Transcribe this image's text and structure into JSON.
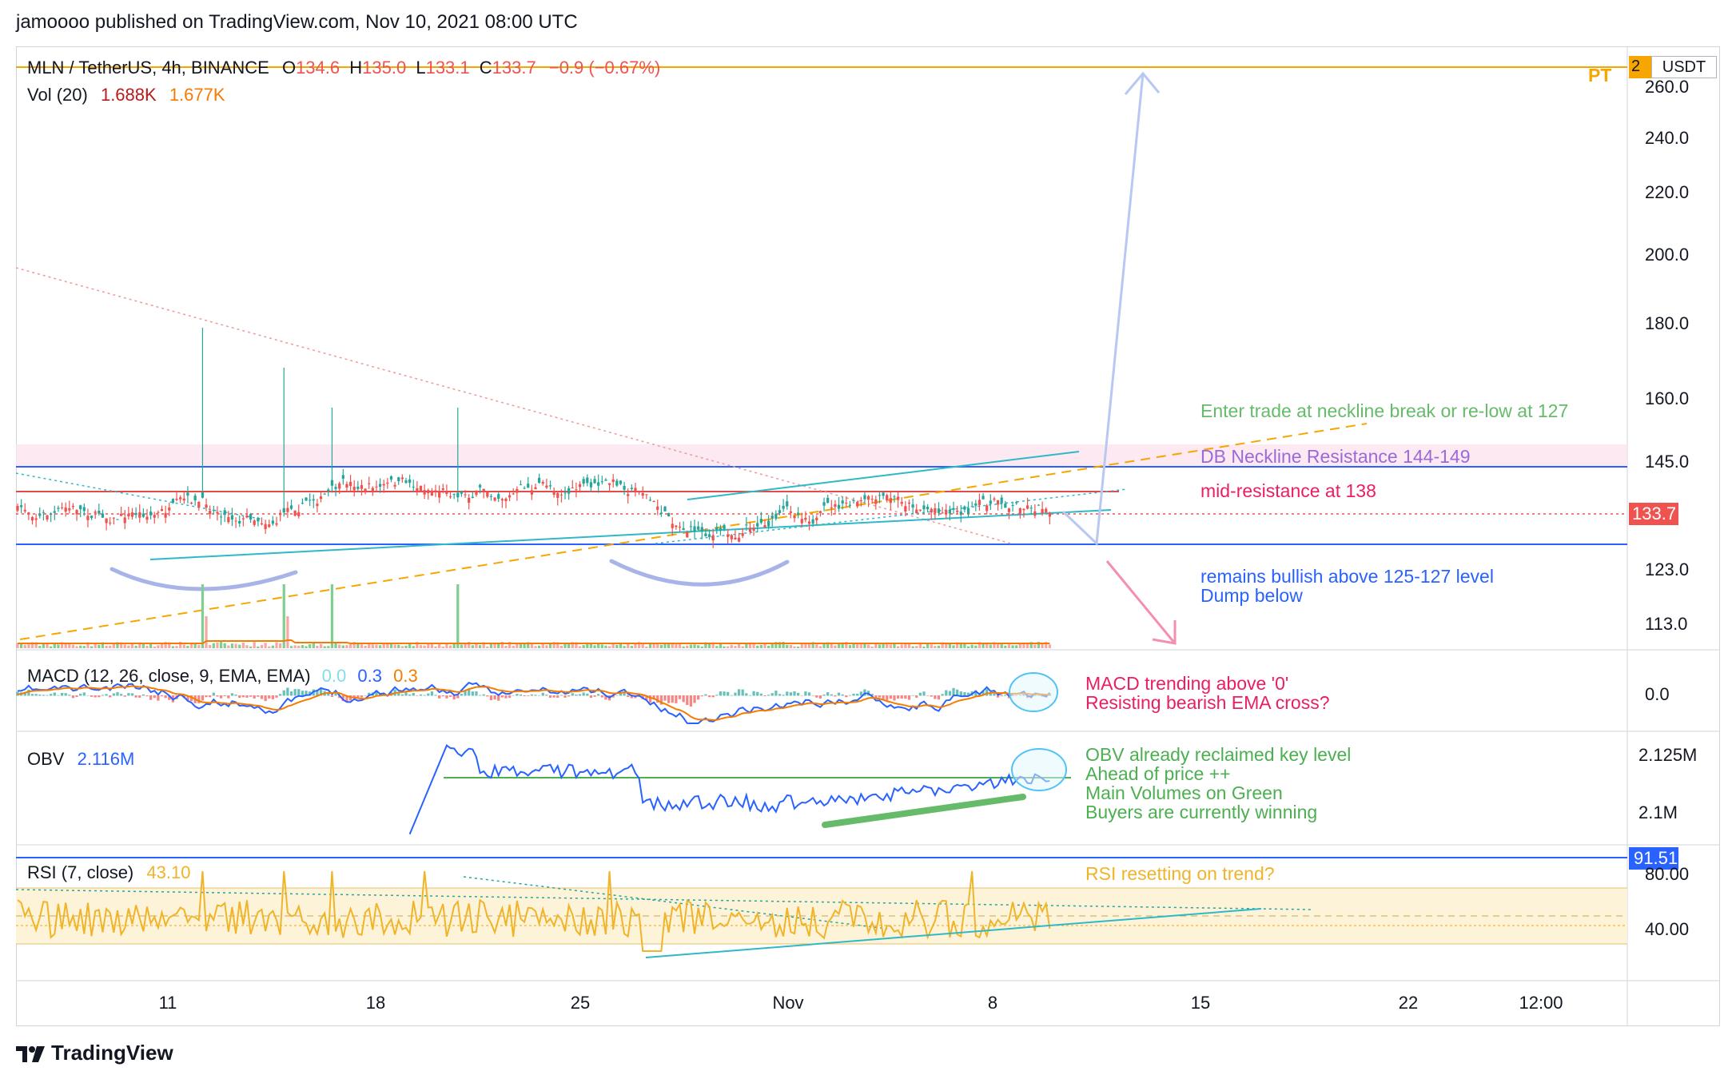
{
  "header": {
    "publish_line": "jamoooo published on TradingView.com, Nov 10, 2021 08:00 UTC"
  },
  "main_legend": {
    "symbol": "MLN / TetherUS, 4h, BINANCE",
    "o_label": "O",
    "o_value": "134.6",
    "h_label": "H",
    "h_value": "135.0",
    "l_label": "L",
    "l_value": "133.1",
    "c_label": "C",
    "c_value": "133.7",
    "change": "−0.9 (−0.67%)",
    "vol_label": "Vol (20)",
    "vol_value_1": "1.688K",
    "vol_value_2": "1.677K"
  },
  "price_axis": {
    "currency": "USDT",
    "ticks": [
      "260.0",
      "240.0",
      "220.0",
      "200.0",
      "180.0",
      "160.0",
      "145.0",
      "123.0",
      "113.0"
    ],
    "current_price": "133.7",
    "top_marker": "2"
  },
  "annotations": {
    "pt": "PT",
    "enter_trade": "Enter trade at neckline break or re-low at 127",
    "neckline": "DB Neckline Resistance 144-149",
    "mid_resistance": "mid-resistance at 138",
    "bullish_1": "remains bullish above 125-127 level",
    "bullish_2": "Dump below",
    "macd_1": "MACD trending above '0'",
    "macd_2": "Resisting bearish EMA cross?",
    "obv_1": "OBV already reclaimed key level",
    "obv_2": "Ahead of price ++",
    "obv_3": "Main Volumes on Green",
    "obv_4": "Buyers are currently winning",
    "rsi_1": "RSI resetting on trend?"
  },
  "macd_pane": {
    "label": "MACD (12, 26, close, 9, EMA, EMA)",
    "v1": "0.0",
    "v2": "0.3",
    "v3": "0.3",
    "axis_tick": "0.0"
  },
  "obv_pane": {
    "label": "OBV",
    "value": "2.116M",
    "axis_ticks": [
      "2.125M",
      "2.1M"
    ]
  },
  "rsi_pane": {
    "label": "RSI (7, close)",
    "value": "43.10",
    "axis_ticks": [
      "80.00",
      "40.00"
    ],
    "marker": "91.51"
  },
  "time_axis": {
    "ticks": [
      "11",
      "18",
      "25",
      "Nov",
      "8",
      "15",
      "22",
      "12:00"
    ]
  },
  "footer": {
    "brand": "TradingView"
  },
  "colors": {
    "up": "#26a69a",
    "down": "#ef5350",
    "orange": "#f7a600",
    "cyan": "#2fb8c8",
    "blue": "#2962ff",
    "red_line": "#e24b4b",
    "green_text": "#4caf50",
    "pink_text": "#e91e63",
    "purple_text": "#9c6ad8",
    "rsi_text": "#f0b429"
  }
}
